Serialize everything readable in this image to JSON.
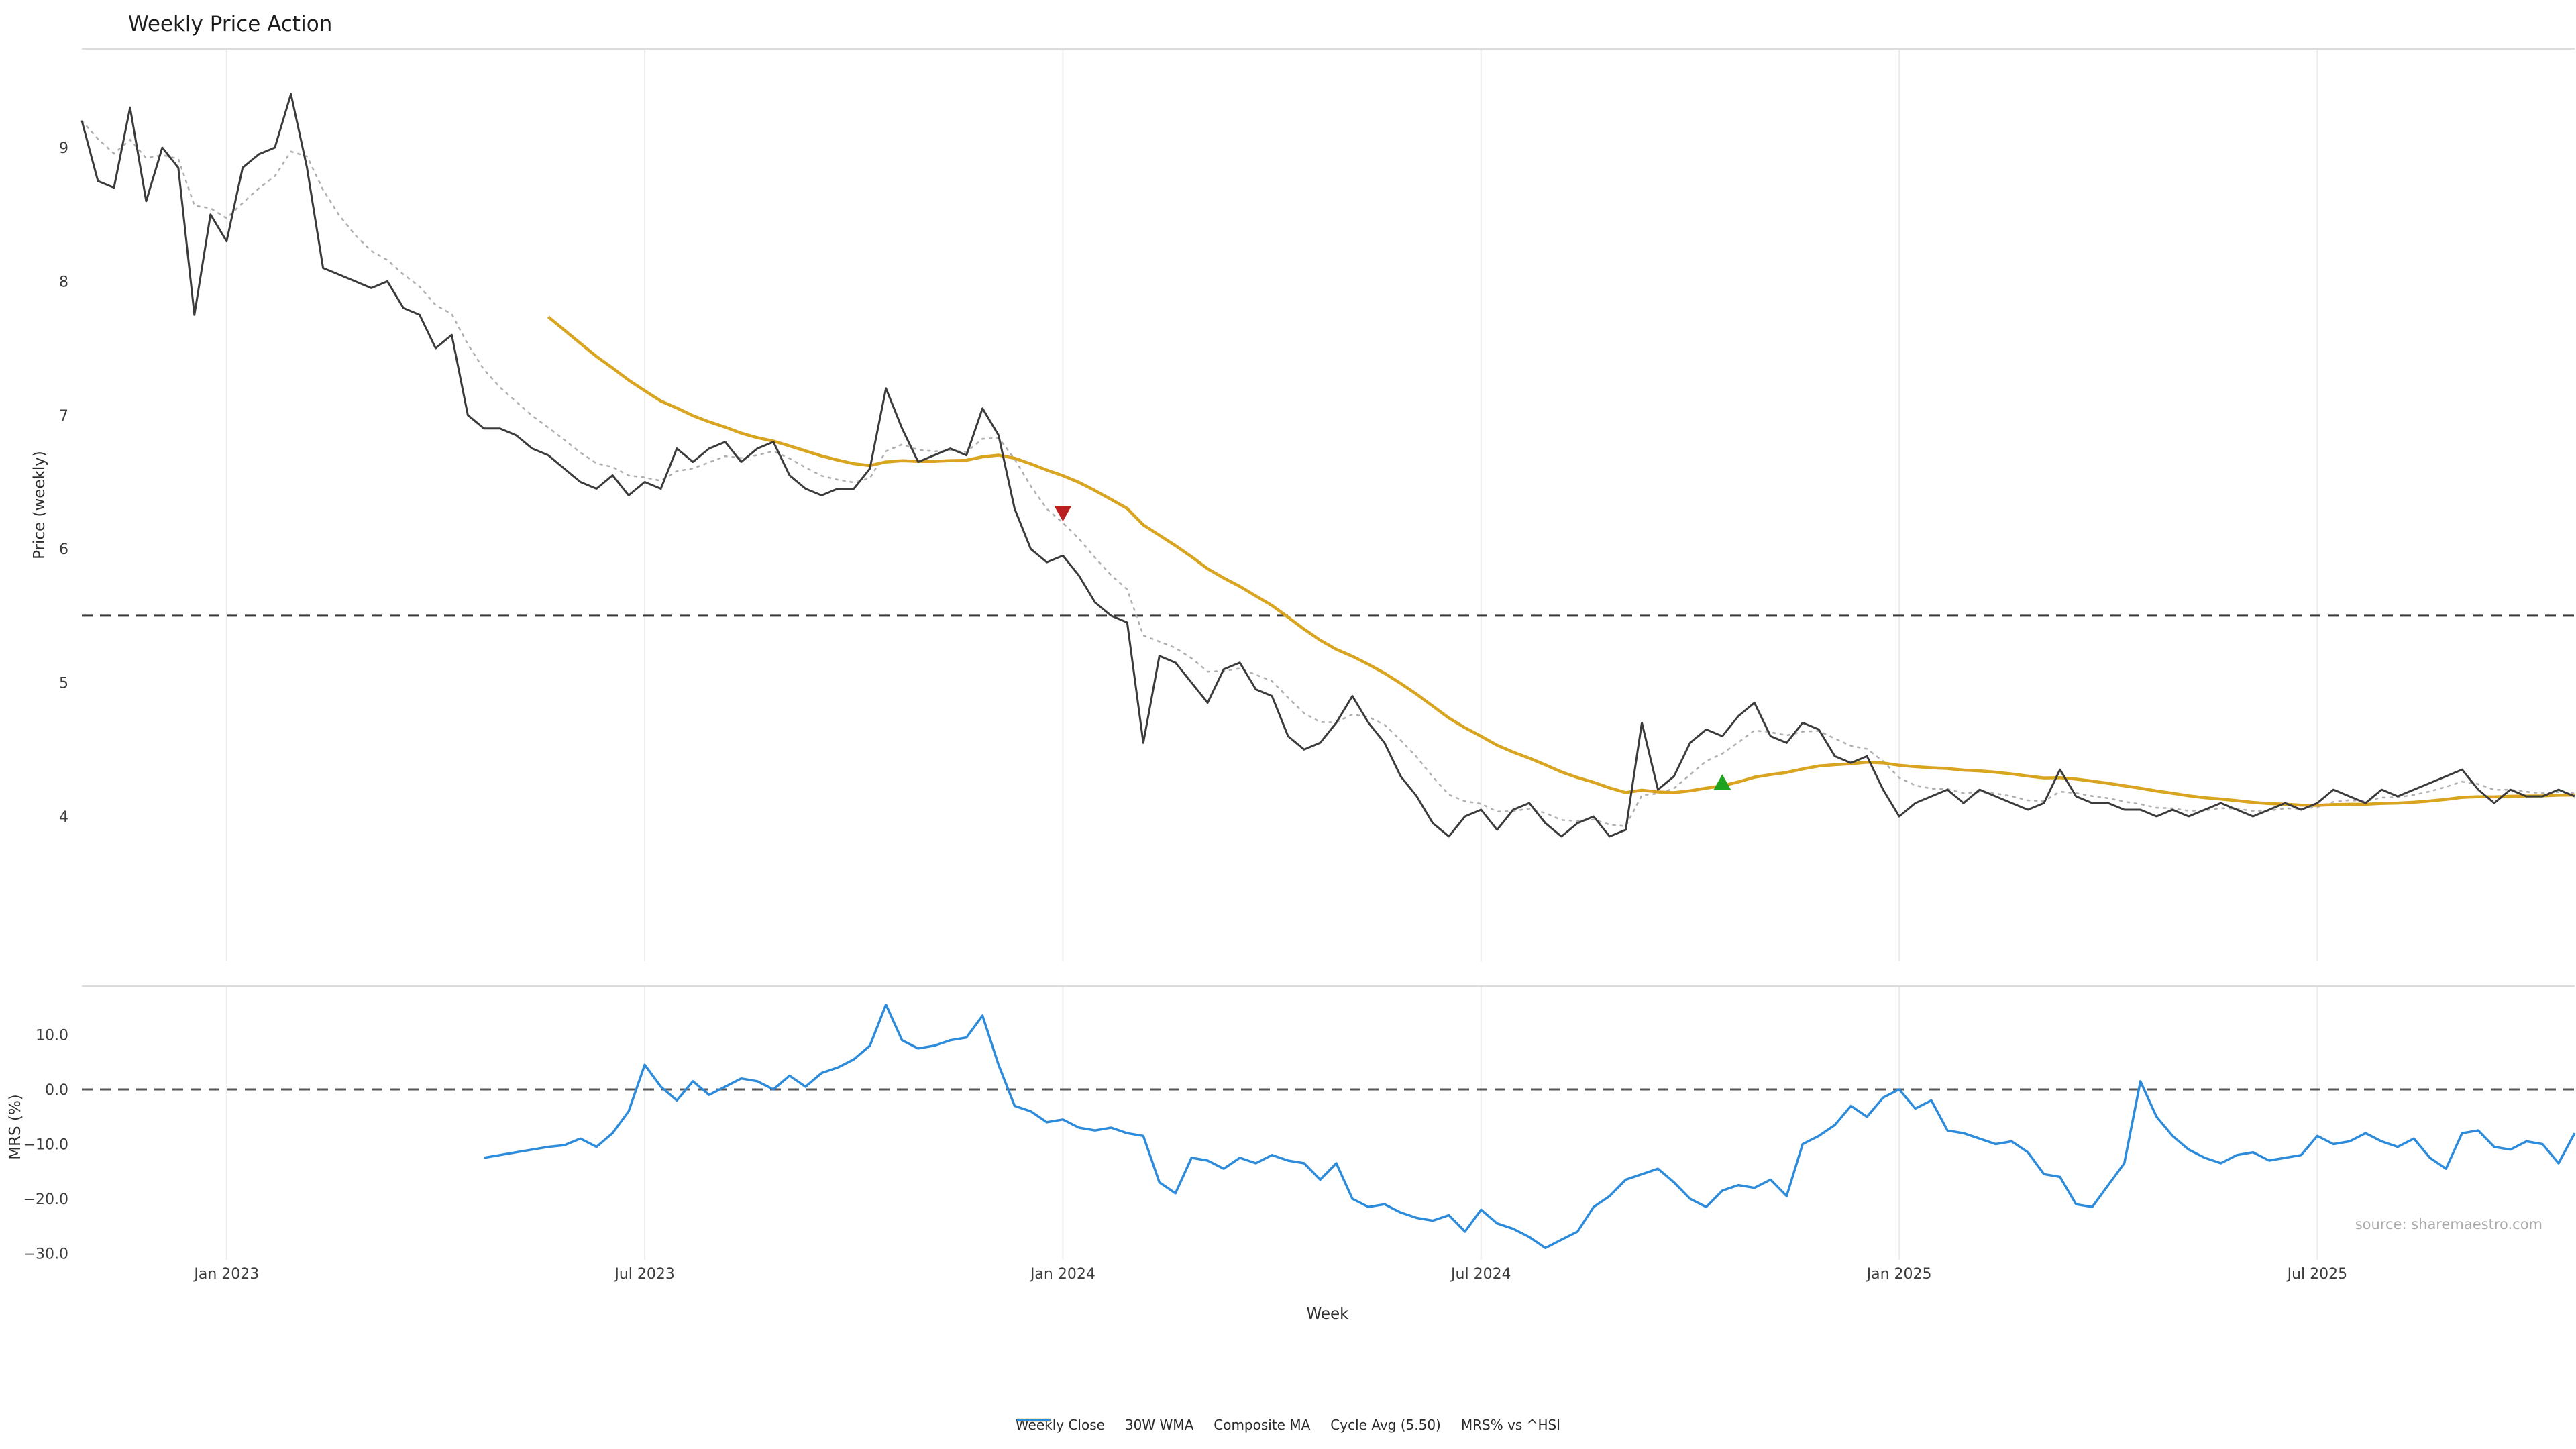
{
  "chart_data": {
    "type": "line",
    "title": "Weekly Price Action",
    "xlabel": "Week",
    "ylabel_price": "Price (weekly)",
    "ylabel_mrs": "MRS (%)",
    "source": "source: sharemaestro.com",
    "x_ticks": [
      {
        "week": 9,
        "label": "Jan 2023"
      },
      {
        "week": 35,
        "label": "Jul 2023"
      },
      {
        "week": 61,
        "label": "Jan 2024"
      },
      {
        "week": 87,
        "label": "Jul 2024"
      },
      {
        "week": 113,
        "label": "Jan 2025"
      },
      {
        "week": 139,
        "label": "Jul 2025"
      }
    ],
    "price_yticks": [
      {
        "v": 4,
        "label": "4"
      },
      {
        "v": 5,
        "label": "5"
      },
      {
        "v": 6,
        "label": "6"
      },
      {
        "v": 7,
        "label": "7"
      },
      {
        "v": 8,
        "label": "8"
      },
      {
        "v": 9,
        "label": "9"
      }
    ],
    "mrs_yticks": [
      {
        "v": 10,
        "label": "10.0"
      },
      {
        "v": 0,
        "label": "0.0"
      },
      {
        "v": -10,
        "label": "−10.0"
      },
      {
        "v": -20,
        "label": "−20.0"
      },
      {
        "v": -30,
        "label": "−30.0"
      }
    ],
    "price_ylim": [
      3.5,
      9.7
    ],
    "mrs_ylim": [
      -32,
      17
    ],
    "grid": "vertical-only",
    "cycle_avg": 5.5,
    "indicators": {
      "wma_period": 30,
      "composite_ema_alpha": 0.3
    },
    "weekly_close": [
      9.2,
      8.75,
      8.7,
      9.3,
      8.6,
      9.0,
      8.85,
      7.75,
      8.5,
      8.3,
      8.85,
      8.95,
      9.0,
      9.4,
      8.85,
      8.1,
      8.05,
      8.0,
      7.95,
      8.0,
      7.8,
      7.75,
      7.5,
      7.6,
      7.0,
      6.9,
      6.9,
      6.85,
      6.75,
      6.7,
      6.6,
      6.5,
      6.45,
      6.55,
      6.4,
      6.5,
      6.45,
      6.75,
      6.65,
      6.75,
      6.8,
      6.65,
      6.75,
      6.8,
      6.55,
      6.45,
      6.4,
      6.45,
      6.45,
      6.6,
      7.2,
      6.9,
      6.65,
      6.7,
      6.75,
      6.7,
      7.05,
      6.85,
      6.3,
      6.0,
      5.9,
      5.95,
      5.8,
      5.6,
      5.5,
      5.45,
      4.55,
      5.2,
      5.15,
      5.0,
      4.85,
      5.1,
      5.15,
      4.95,
      4.9,
      4.6,
      4.5,
      4.55,
      4.7,
      4.9,
      4.7,
      4.55,
      4.3,
      4.15,
      3.95,
      3.85,
      4.0,
      4.05,
      3.9,
      4.05,
      4.1,
      3.95,
      3.85,
      3.95,
      4.0,
      3.85,
      3.9,
      4.7,
      4.2,
      4.3,
      4.55,
      4.65,
      4.6,
      4.75,
      4.85,
      4.6,
      4.55,
      4.7,
      4.65,
      4.45,
      4.4,
      4.45,
      4.2,
      4.0,
      4.1,
      4.15,
      4.2,
      4.1,
      4.2,
      4.15,
      4.1,
      4.05,
      4.1,
      4.35,
      4.15,
      4.1,
      4.1,
      4.05,
      4.05,
      4.0,
      4.05,
      4.0,
      4.05,
      4.1,
      4.05,
      4.0,
      4.05,
      4.1,
      4.05,
      4.1,
      4.2,
      4.15,
      4.1,
      4.2,
      4.15,
      4.2,
      4.25,
      4.3,
      4.35,
      4.2,
      4.1,
      4.2,
      4.15,
      4.15,
      4.2,
      4.15
    ],
    "mrs": {
      "start_week": 25,
      "values": [
        -12.5,
        -12,
        -11.5,
        -11,
        -10.5,
        -10.2,
        -9,
        -10.5,
        -8,
        -4,
        4.5,
        0.5,
        -2,
        1.5,
        -1,
        0.5,
        2,
        1.5,
        0,
        2.5,
        0.5,
        3,
        4,
        5.5,
        8,
        15.5,
        9,
        7.5,
        8,
        9,
        9.5,
        13.5,
        4.5,
        -3,
        -4,
        -6,
        -5.5,
        -7,
        -7.5,
        -7,
        -8,
        -8.5,
        -17,
        -19,
        -12.5,
        -13,
        -14.5,
        -12.5,
        -13.5,
        -12,
        -13,
        -13.5,
        -16.5,
        -13.5,
        -20,
        -21.5,
        -21,
        -22.5,
        -23.5,
        -24,
        -23,
        -26,
        -22,
        -24.5,
        -25.5,
        -27,
        -29,
        -27.5,
        -26,
        -21.5,
        -19.5,
        -16.5,
        -15.5,
        -14.5,
        -17,
        -20,
        -21.5,
        -18.5,
        -17.5,
        -18,
        -16.5,
        -19.5,
        -10,
        -8.5,
        -6.5,
        -3,
        -5,
        -1.5,
        0,
        -3.5,
        -2,
        -7.5,
        -8,
        -9,
        -10,
        -9.5,
        -11.5,
        -15.5,
        -16,
        -21,
        -21.5,
        -17.5,
        -13.5,
        1.5,
        -5,
        -8.5,
        -11,
        -12.5,
        -13.5,
        -12,
        -11.5,
        -13,
        -12.5,
        -12,
        -8.5,
        -10,
        -9.5,
        -8,
        -9.5,
        -10.5,
        -9,
        -12.5,
        -14.5,
        -8,
        -7.5,
        -10.5,
        -11,
        -9.5,
        -10,
        -13.5,
        -8
      ]
    },
    "markers": [
      {
        "name": "sell-signal",
        "shape": "triangle-down",
        "week": 61,
        "price": 6.27,
        "color": "#bb2020"
      },
      {
        "name": "buy-signal",
        "shape": "triangle-up",
        "week": 102,
        "price": 4.25,
        "color": "#1fa31f"
      }
    ],
    "legend": [
      {
        "label": "Weekly Close",
        "color": "#3b3b3b",
        "style": "solid"
      },
      {
        "label": "30W WMA",
        "color": "#d9a521",
        "style": "solid"
      },
      {
        "label": "Composite MA",
        "color": "#b0b0b0",
        "style": "dotted"
      },
      {
        "label": "Cycle Avg (5.50)",
        "color": "#3a3a3a",
        "style": "dashed"
      },
      {
        "label": "MRS% vs ^HSI",
        "color": "#2d8bdb",
        "style": "solid"
      }
    ],
    "colors": {
      "close": "#3b3b3b",
      "wma": "#d9a521",
      "composite": "#b0b0b0",
      "cycle": "#3a3a3a",
      "mrs": "#2d8bdb",
      "zero_line": "#555555",
      "grid": "#ececec",
      "spine": "#dcdcdc"
    }
  }
}
